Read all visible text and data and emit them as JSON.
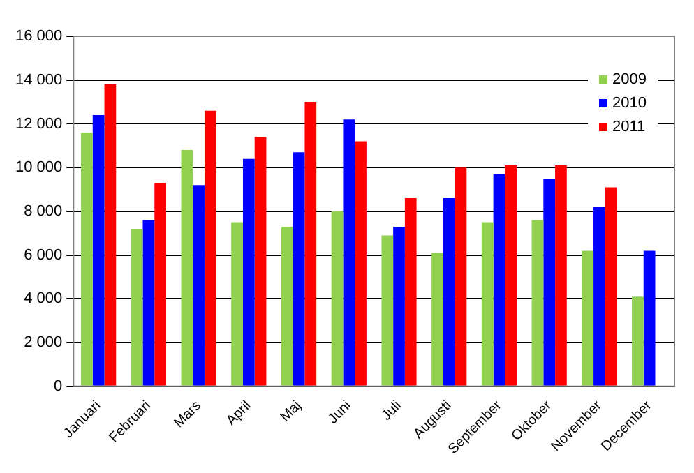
{
  "chart_data": {
    "type": "bar",
    "categories": [
      "Januari",
      "Februari",
      "Mars",
      "April",
      "Maj",
      "Juni",
      "Juli",
      "Augusti",
      "September",
      "Oktober",
      "November",
      "December"
    ],
    "series": [
      {
        "name": "2009",
        "color": "#92d050",
        "values": [
          11600,
          7200,
          10800,
          7500,
          7300,
          8000,
          6900,
          6100,
          7500,
          7600,
          6200,
          4100
        ]
      },
      {
        "name": "2010",
        "color": "#0000ff",
        "values": [
          12400,
          7600,
          9200,
          10400,
          10700,
          12200,
          7300,
          8600,
          9700,
          9500,
          8200,
          6200
        ]
      },
      {
        "name": "2011",
        "color": "#ff0000",
        "values": [
          13800,
          9300,
          12600,
          11400,
          13000,
          11200,
          8600,
          10000,
          10100,
          10100,
          9100,
          null
        ]
      }
    ],
    "ylim": [
      0,
      16000
    ],
    "yticks": [
      {
        "value": 0,
        "label": "0"
      },
      {
        "value": 2000,
        "label": "2 000"
      },
      {
        "value": 4000,
        "label": "4 000"
      },
      {
        "value": 6000,
        "label": "6 000"
      },
      {
        "value": 8000,
        "label": "8 000"
      },
      {
        "value": 10000,
        "label": "10 000"
      },
      {
        "value": 12000,
        "label": "12 000"
      },
      {
        "value": 14000,
        "label": "14 000"
      },
      {
        "value": 16000,
        "label": "16 000"
      }
    ],
    "grid": "y",
    "legend": "top right"
  }
}
